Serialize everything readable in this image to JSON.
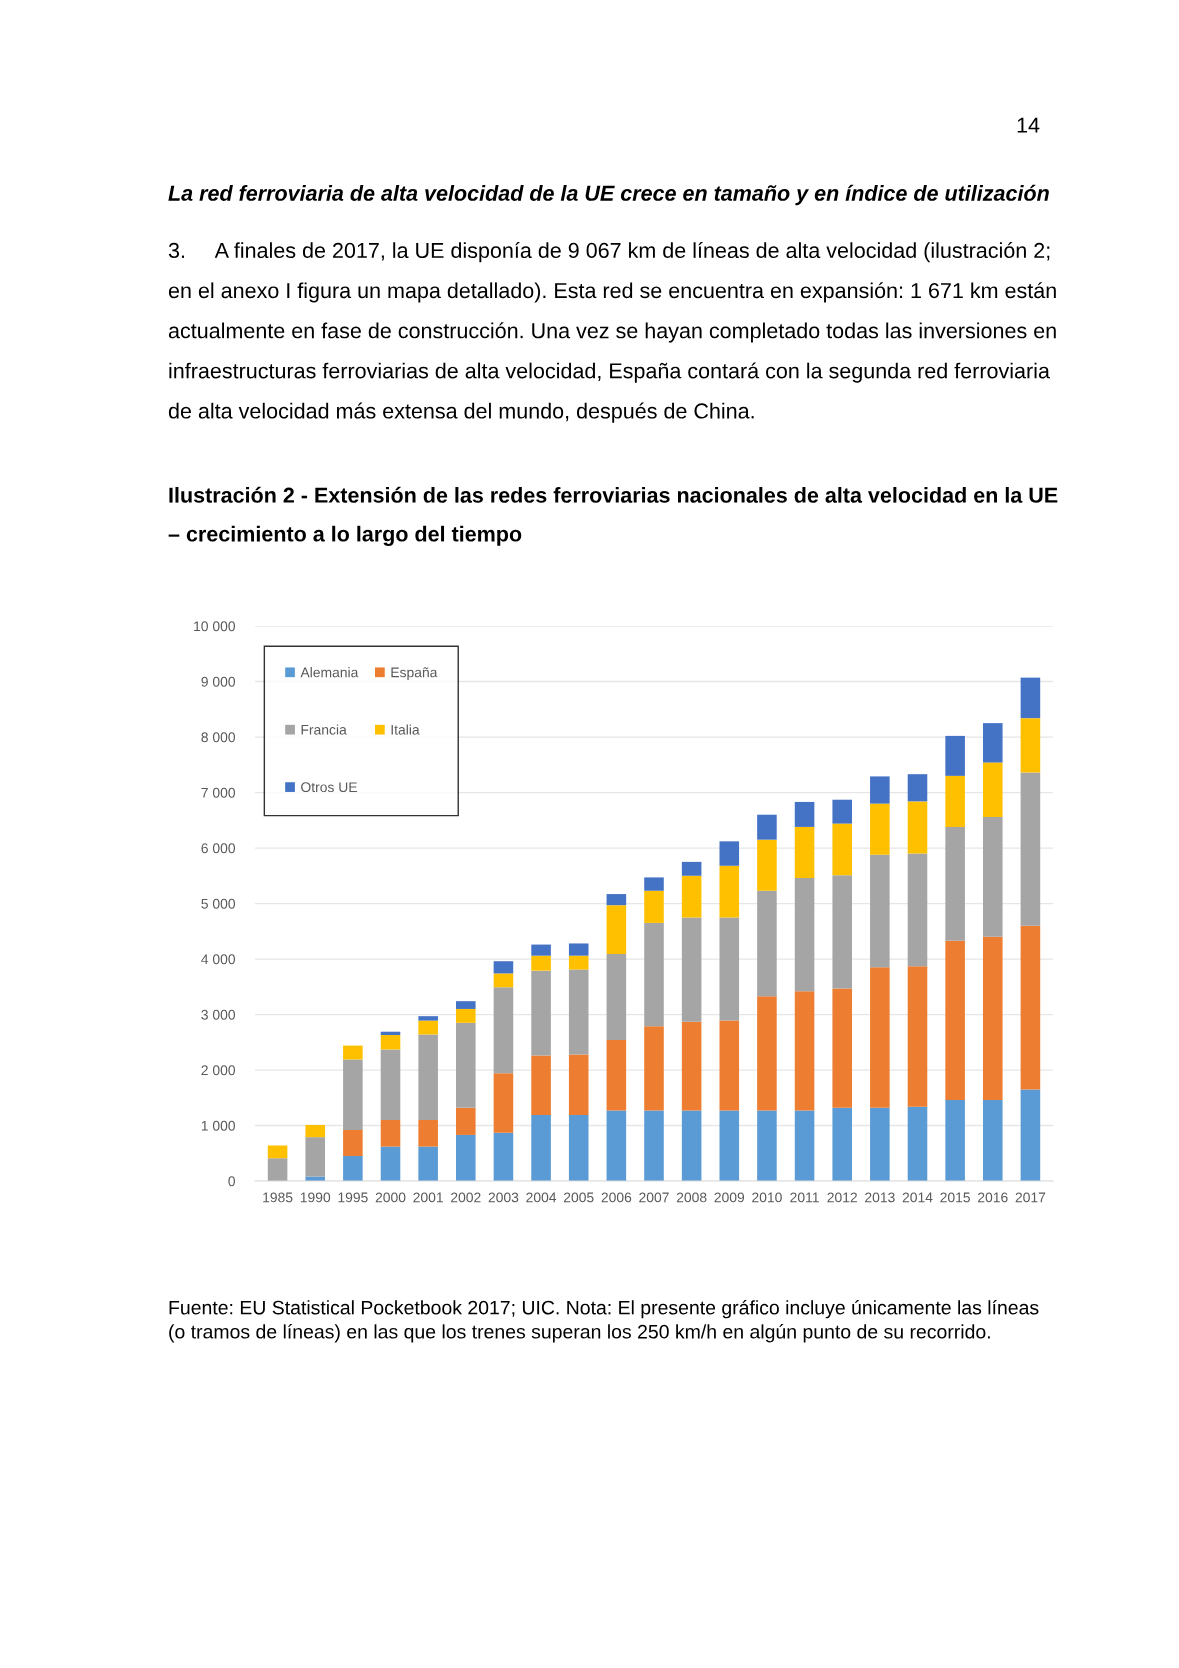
{
  "chart_data": {
    "type": "bar",
    "stacked": true,
    "title": "Ilustración 2 - Extensión de las redes ferroviarias nacionales de alta velocidad en la UE – crecimiento a lo largo del tiempo",
    "categories": [
      "1985",
      "1990",
      "1995",
      "2000",
      "2001",
      "2002",
      "2003",
      "2004",
      "2005",
      "2006",
      "2007",
      "2008",
      "2009",
      "2010",
      "2011",
      "2012",
      "2013",
      "2014",
      "2015",
      "2016",
      "2017"
    ],
    "series": [
      {
        "name": "Alemania",
        "color": "#5b9bd5",
        "values": [
          0,
          80,
          450,
          620,
          620,
          830,
          870,
          1190,
          1190,
          1270,
          1270,
          1270,
          1270,
          1270,
          1270,
          1320,
          1320,
          1340,
          1460,
          1460,
          1650
        ]
      },
      {
        "name": "España",
        "color": "#ed7d31",
        "values": [
          0,
          0,
          470,
          480,
          480,
          490,
          1070,
          1070,
          1090,
          1270,
          1520,
          1600,
          1620,
          2060,
          2150,
          2150,
          2530,
          2530,
          2870,
          2940,
          2950
        ]
      },
      {
        "name": "Francia",
        "color": "#a5a5a5",
        "values": [
          410,
          710,
          1270,
          1270,
          1540,
          1530,
          1550,
          1530,
          1530,
          1550,
          1860,
          1880,
          1860,
          1900,
          2040,
          2040,
          2030,
          2030,
          2050,
          2160,
          2760
        ]
      },
      {
        "name": "Italia",
        "color": "#ffc000",
        "values": [
          230,
          220,
          250,
          260,
          250,
          250,
          250,
          270,
          250,
          880,
          580,
          750,
          930,
          920,
          920,
          930,
          920,
          940,
          920,
          980,
          980
        ]
      },
      {
        "name": "Otros UE",
        "color": "#4472c4",
        "values": [
          0,
          0,
          0,
          60,
          80,
          140,
          220,
          200,
          220,
          200,
          240,
          250,
          440,
          450,
          450,
          430,
          490,
          490,
          720,
          710,
          730
        ]
      }
    ],
    "ylim": [
      0,
      10000
    ],
    "yticks": [
      0,
      {
        "value": 1000,
        "label": "1 000"
      },
      {
        "value": 2000,
        "label": "2 000"
      },
      {
        "value": 3000,
        "label": "3 000"
      },
      {
        "value": 4000,
        "label": "4 000"
      },
      {
        "value": 5000,
        "label": "5 000"
      },
      {
        "value": 6000,
        "label": "6 000"
      },
      {
        "value": 7000,
        "label": "7 000"
      },
      {
        "value": 8000,
        "label": "8 000"
      },
      {
        "value": 9000,
        "label": "9 000"
      },
      {
        "value": 10000,
        "label": "10 000"
      }
    ],
    "grid": "y",
    "legend": "top left",
    "annotations": [
      "14",
      "La red ferroviaria de alta velocidad de la UE crece en tamaño y en índice de utilización",
      "3.     A finales de 2017, la UE disponía de 9 067 km de líneas de alta velocidad (ilustración 2; en el anexo I figura un mapa detallado). Esta red se encuentra en expansión: 1 671 km están actualmente en fase de construcción. Una vez se hayan completado todas las inversiones en infraestructuras ferroviarias de alta velocidad, España contará con la segunda red ferroviaria de alta velocidad más extensa del mundo, después de China.",
      "Fuente: EU Statistical Pocketbook 2017; UIC. Nota: El presente gráfico incluye únicamente las líneas (o tramos de líneas) en las que los trenes superan los 250 km/h en algún punto de su recorrido."
    ]
  }
}
